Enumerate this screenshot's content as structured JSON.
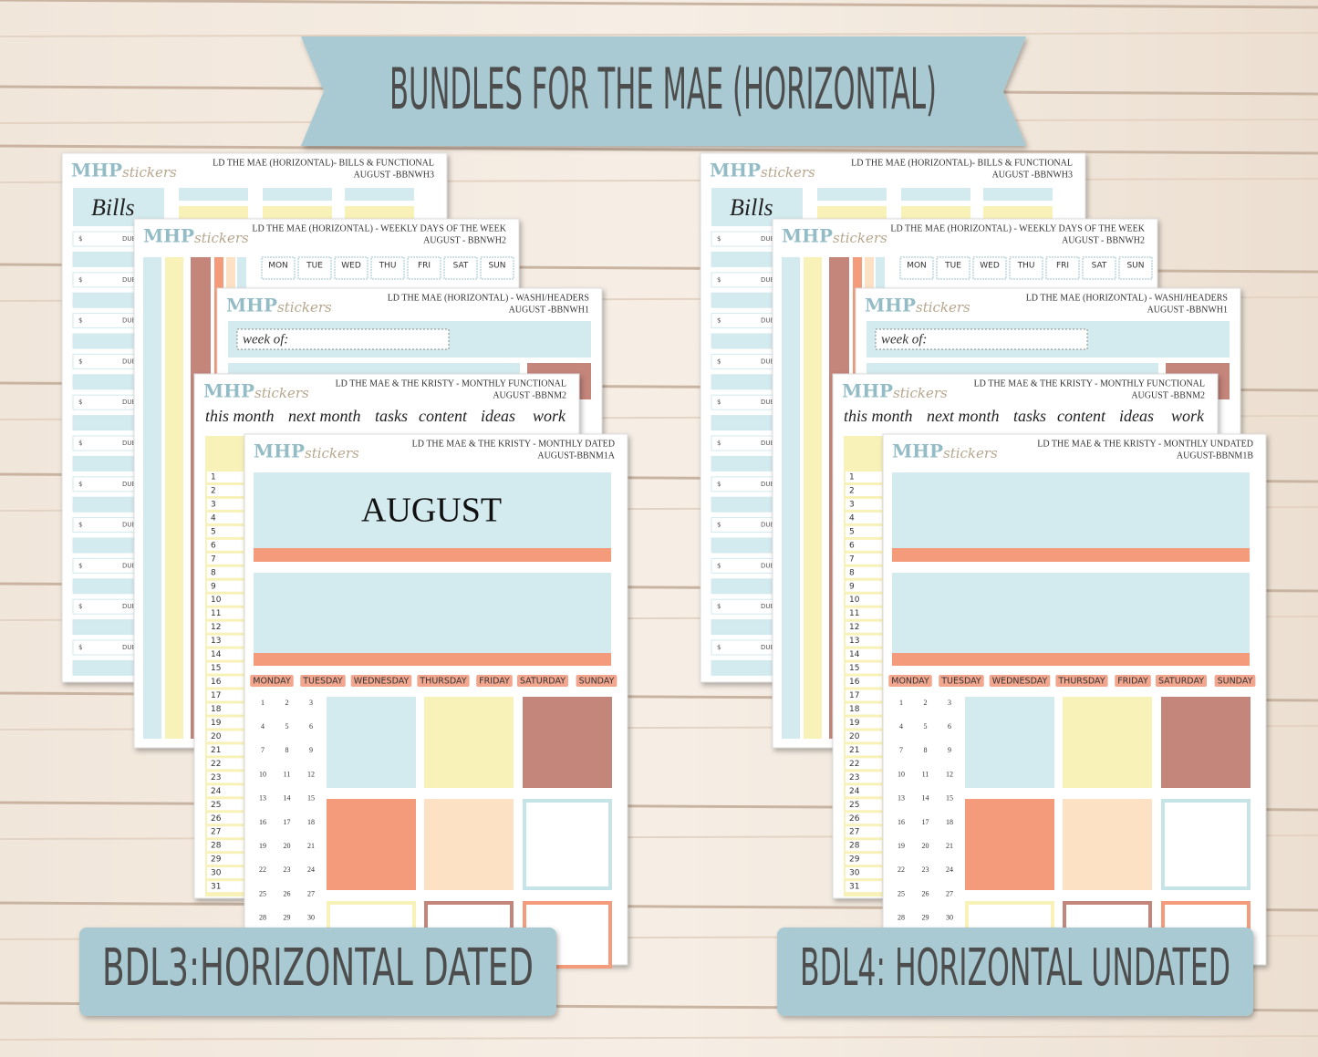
{
  "banner": {
    "title": "BUNDLES FOR THE MAE (HORIZONTAL)"
  },
  "bundles": [
    {
      "label": "BDL3:HORIZONTAL DATED",
      "sheets": [
        {
          "brand": "MHP",
          "brand_script": "stickers",
          "title": "LD THE MAE (HORIZONTAL)- BILLS & FUNCTIONAL",
          "code": "AUGUST -BBNWH3",
          "heading": "Bills",
          "fields": [
            "$",
            "DUE"
          ]
        },
        {
          "brand": "MHP",
          "brand_script": "stickers",
          "title": "LD THE MAE (HORIZONTAL) - WEEKLY DAYS OF THE WEEK",
          "code": "AUGUST - BBNWH2",
          "days": [
            "MON",
            "TUE",
            "WED",
            "THU",
            "FRI",
            "SAT",
            "SUN"
          ]
        },
        {
          "brand": "MHP",
          "brand_script": "stickers",
          "title": "LD THE MAE (HORIZONTAL) - WASHI/HEADERS",
          "code": "AUGUST -BBNWH1",
          "prompt": "week of:"
        },
        {
          "brand": "MHP",
          "brand_script": "stickers",
          "title": "LD THE MAE & THE KRISTY - MONTHLY FUNCTIONAL",
          "code": "AUGUST -BBNM2",
          "tabs": [
            "this month",
            "next month",
            "tasks",
            "content",
            "ideas",
            "work"
          ],
          "numbers": [
            1,
            2,
            3,
            4,
            5,
            6,
            7,
            8,
            9,
            10,
            11,
            12,
            13,
            14,
            15,
            16,
            17,
            18,
            19,
            20,
            21,
            22,
            23,
            24,
            25,
            26,
            27,
            28,
            29,
            30,
            31
          ]
        },
        {
          "brand": "MHP",
          "brand_script": "stickers",
          "title": "LD THE MAE & THE KRISTY - MONTHLY DATED",
          "code": "AUGUST-BBNM1A",
          "month": "AUGUST",
          "weekdays": [
            "MONDAY",
            "TUESDAY",
            "WEDNESDAY",
            "THURSDAY",
            "FRIDAY",
            "SATURDAY",
            "SUNDAY"
          ],
          "dates": [
            1,
            2,
            3,
            4,
            5,
            6,
            7,
            8,
            9,
            10,
            11,
            12,
            13,
            14,
            15,
            16,
            17,
            18,
            19,
            20,
            21,
            22,
            23,
            24,
            25,
            26,
            27,
            28,
            29,
            30
          ]
        }
      ]
    },
    {
      "label": "BDL4: HORIZONTAL UNDATED",
      "sheets": [
        {
          "brand": "MHP",
          "brand_script": "stickers",
          "title": "LD THE MAE (HORIZONTAL)- BILLS & FUNCTIONAL",
          "code": "AUGUST -BBNWH3",
          "heading": "Bills",
          "fields": [
            "$",
            "DUE"
          ]
        },
        {
          "brand": "MHP",
          "brand_script": "stickers",
          "title": "LD THE MAE (HORIZONTAL) - WEEKLY DAYS OF THE WEEK",
          "code": "AUGUST - BBNWH2",
          "days": [
            "MON",
            "TUE",
            "WED",
            "THU",
            "FRI",
            "SAT",
            "SUN"
          ]
        },
        {
          "brand": "MHP",
          "brand_script": "stickers",
          "title": "LD THE MAE (HORIZONTAL) - WASHI/HEADERS",
          "code": "AUGUST -BBNWH1",
          "prompt": "week of:"
        },
        {
          "brand": "MHP",
          "brand_script": "stickers",
          "title": "LD THE MAE & THE KRISTY - MONTHLY FUNCTIONAL",
          "code": "AUGUST -BBNM2",
          "tabs": [
            "this month",
            "next month",
            "tasks",
            "content",
            "ideas",
            "work"
          ],
          "numbers": [
            1,
            2,
            3,
            4,
            5,
            6,
            7,
            8,
            9,
            10,
            11,
            12,
            13,
            14,
            15,
            16,
            17,
            18,
            19,
            20,
            21,
            22,
            23,
            24,
            25,
            26,
            27,
            28,
            29,
            30,
            31
          ]
        },
        {
          "brand": "MHP",
          "brand_script": "stickers",
          "title": "LD THE MAE & THE KRISTY - MONTHLY UNDATED",
          "code": "AUGUST-BBNM1B",
          "weekdays": [
            "MONDAY",
            "TUESDAY",
            "WEDNESDAY",
            "THURSDAY",
            "FRIDAY",
            "SATURDAY",
            "SUNDAY"
          ],
          "dates": [
            1,
            2,
            3,
            4,
            5,
            6,
            7,
            8,
            9,
            10,
            11,
            12,
            13,
            14,
            15,
            16,
            17,
            18,
            19,
            20,
            21,
            22,
            23,
            24,
            25,
            26,
            27,
            28,
            29,
            30
          ]
        }
      ]
    }
  ]
}
